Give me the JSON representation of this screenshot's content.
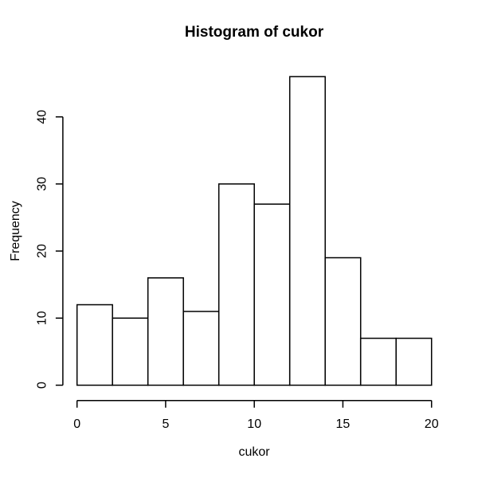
{
  "chart_data": {
    "type": "bar",
    "subtype": "histogram",
    "title": "Histogram of cukor",
    "xlabel": "cukor",
    "ylabel": "Frequency",
    "bin_edges": [
      0,
      2,
      4,
      6,
      8,
      10,
      12,
      14,
      16,
      18,
      20
    ],
    "counts": [
      12,
      10,
      16,
      11,
      30,
      27,
      46,
      19,
      7,
      7
    ],
    "x_ticks": [
      0,
      5,
      10,
      15,
      20
    ],
    "y_ticks": [
      0,
      10,
      20,
      30,
      40
    ],
    "xlim": [
      0,
      20
    ],
    "ylim": [
      0,
      46
    ],
    "grid": false,
    "legend": false,
    "colors": {
      "bar_fill": "#ffffff",
      "bar_stroke": "#000000",
      "axis": "#000000",
      "text": "#000000",
      "background": "#ffffff"
    }
  }
}
